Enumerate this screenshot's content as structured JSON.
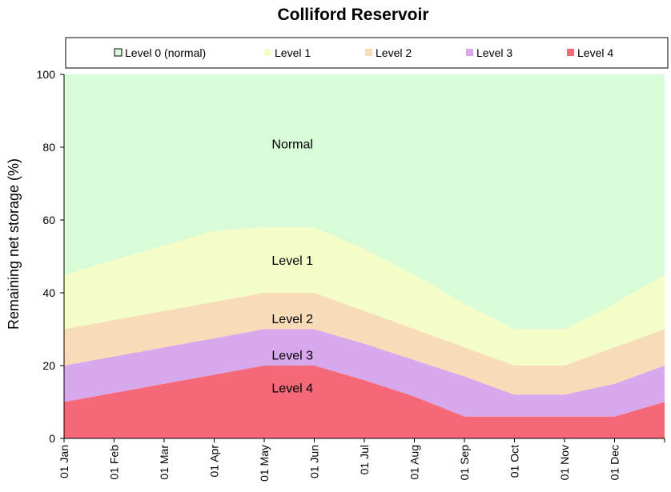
{
  "chart_data": {
    "type": "area",
    "title": "Colliford Reservoir",
    "ylabel": "Remaining  net storage  (%)",
    "xlabel": "",
    "ylim": [
      0,
      100
    ],
    "yticks": [
      0,
      20,
      40,
      60,
      80,
      100
    ],
    "x_tick_labels": [
      "01 Jan",
      "01 Feb",
      "01 Mar",
      "01 Apr",
      "01 May",
      "01 Jun",
      "01 Jul",
      "01 Aug",
      "01 Sep",
      "01 Oct",
      "01 Nov",
      "01 Dec"
    ],
    "x_months": [
      "01 Jan",
      "01 Feb",
      "01 Mar",
      "01 Apr",
      "01 May",
      "01 Jun",
      "01 Jul",
      "01 Aug",
      "01 Sep",
      "01 Oct",
      "01 Nov",
      "01 Dec",
      "01 Jan"
    ],
    "legend_position": "top",
    "grid": false,
    "series": [
      {
        "name": "Level 0 (normal)",
        "color": "#d8fcd8",
        "upper": [
          100,
          100,
          100,
          100,
          100,
          100,
          100,
          100,
          100,
          100,
          100,
          100,
          100
        ]
      },
      {
        "name": "Level 1",
        "color": "#f4fcc8",
        "upper": [
          45,
          49,
          53,
          57,
          58,
          58,
          52,
          45,
          37,
          30,
          30,
          37,
          45
        ]
      },
      {
        "name": "Level 2",
        "color": "#f8dcb8",
        "upper": [
          30,
          32.5,
          35,
          37.5,
          40,
          40,
          35,
          30,
          25,
          20,
          20,
          25,
          30
        ]
      },
      {
        "name": "Level 3",
        "color": "#d8a8ec",
        "upper": [
          20,
          22.5,
          25,
          27.5,
          30,
          30,
          26,
          21.5,
          17,
          12,
          12,
          15,
          20
        ]
      },
      {
        "name": "Level 4",
        "color": "#f46878",
        "upper": [
          10,
          12.5,
          15,
          17.5,
          20,
          20,
          16,
          11.5,
          6,
          6,
          6,
          6,
          10
        ]
      }
    ],
    "annotations": [
      {
        "text": "Normal",
        "month": 4.15,
        "y": 81
      },
      {
        "text": "Level 1",
        "month": 4.15,
        "y": 49
      },
      {
        "text": "Level 2",
        "month": 4.15,
        "y": 33
      },
      {
        "text": "Level 3",
        "month": 4.15,
        "y": 23
      },
      {
        "text": "Level 4",
        "month": 4.15,
        "y": 14
      }
    ]
  }
}
